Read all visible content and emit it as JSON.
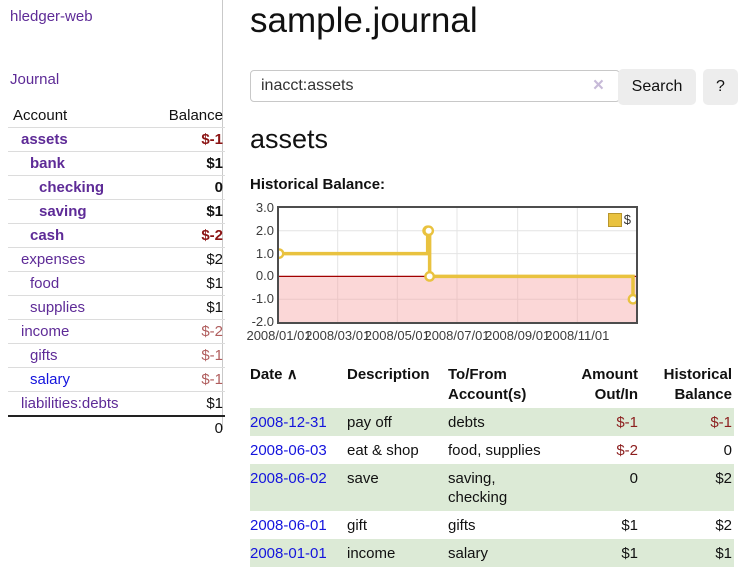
{
  "colors": {
    "link_purple": "#5e2b97",
    "link_blue": "#1414dd",
    "negative_strong": "#8b1414",
    "negative_soft": "#b05d5d",
    "negative_table": "#8c1e1e",
    "row_stripe_green": "#dcead6",
    "chart_line_gold": "#e9c23f",
    "chart_zero_line": "#a20000",
    "chart_negative_fill": "#fcd7d7",
    "chart_border": "#4d4d4d"
  },
  "sidebar": {
    "brand": "hledger-web",
    "journal_link": "Journal",
    "table": {
      "account_header": "Account",
      "balance_header": "Balance",
      "accounts": [
        {
          "name": "assets",
          "depth": 1,
          "bold": true,
          "link": "purple",
          "balance": "$-1",
          "bal_class": "neg-strong"
        },
        {
          "name": "bank",
          "depth": 2,
          "bold": true,
          "link": "purple",
          "balance": "$1",
          "bal_class": ""
        },
        {
          "name": "checking",
          "depth": 3,
          "bold": true,
          "link": "purple",
          "balance": "0",
          "bal_class": ""
        },
        {
          "name": "saving",
          "depth": 3,
          "bold": true,
          "link": "purple",
          "balance": "$1",
          "bal_class": ""
        },
        {
          "name": "cash",
          "depth": 2,
          "bold": true,
          "link": "purple",
          "balance": "$-2",
          "bal_class": "neg-strong"
        },
        {
          "name": "expenses",
          "depth": 1,
          "bold": false,
          "link": "purple",
          "balance": "$2",
          "bal_class": ""
        },
        {
          "name": "food",
          "depth": 2,
          "bold": false,
          "link": "purple",
          "balance": "$1",
          "bal_class": ""
        },
        {
          "name": "supplies",
          "depth": 2,
          "bold": false,
          "link": "purple",
          "balance": "$1",
          "bal_class": ""
        },
        {
          "name": "income",
          "depth": 1,
          "bold": false,
          "link": "purple",
          "balance": "$-2",
          "bal_class": "neg-soft"
        },
        {
          "name": "gifts",
          "depth": 2,
          "bold": false,
          "link": "purple",
          "balance": "$-1",
          "bal_class": "neg-soft"
        },
        {
          "name": "salary",
          "depth": 2,
          "bold": false,
          "link": "blue",
          "balance": "$-1",
          "bal_class": "neg-soft"
        },
        {
          "name": "liabilities:debts",
          "depth": 1,
          "bold": false,
          "link": "purple",
          "balance": "$1",
          "bal_class": ""
        }
      ],
      "total": "0"
    }
  },
  "main": {
    "title": "sample.journal",
    "search": {
      "value": "inacct:assets",
      "clear_icon": "×",
      "search_button": "Search",
      "help_button": "?"
    },
    "account_heading": "assets",
    "chart_label": "Historical Balance:"
  },
  "chart_data": {
    "type": "line",
    "style": "step",
    "title": "Historical Balance",
    "legend": [
      {
        "label": "$",
        "color": "#e9c23f"
      }
    ],
    "legend_position": "top-right",
    "grid": true,
    "ylim": [
      -2,
      3
    ],
    "y_tick_labels": [
      "3.0",
      "2.0",
      "1.0",
      "0.0",
      "-1.0",
      "-2.0"
    ],
    "x_range": [
      "2008/01/01",
      "2008/12/31"
    ],
    "x_tick_labels": [
      "2008/01/01",
      "2008/03/01",
      "2008/05/01",
      "2008/07/01",
      "2008/09/01",
      "2008/11/01"
    ],
    "series": [
      {
        "name": "$",
        "points": [
          [
            "2008-01-01",
            1
          ],
          [
            "2008-06-01",
            2
          ],
          [
            "2008-06-02",
            2
          ],
          [
            "2008-06-03",
            0
          ],
          [
            "2008-12-31",
            -1
          ]
        ]
      }
    ],
    "negative_region_shaded": true
  },
  "transactions": {
    "headers": {
      "date": "Date",
      "description": "Description",
      "accounts": "To/From Account(s)",
      "amount": "Amount Out/In",
      "balance": "Historical Balance"
    },
    "sort_icon": "∧",
    "rows": [
      {
        "date": "2008-12-31",
        "description": "pay off",
        "accounts": "debts",
        "amount": "$-1",
        "amount_neg": true,
        "balance": "$-1",
        "balance_neg": true,
        "shaded": true
      },
      {
        "date": "2008-06-03",
        "description": "eat & shop",
        "accounts": "food, supplies",
        "amount": "$-2",
        "amount_neg": true,
        "balance": "0",
        "balance_neg": false,
        "shaded": false
      },
      {
        "date": "2008-06-02",
        "description": "save",
        "accounts": "saving, checking",
        "amount": "0",
        "amount_neg": false,
        "balance": "$2",
        "balance_neg": false,
        "shaded": true
      },
      {
        "date": "2008-06-01",
        "description": "gift",
        "accounts": "gifts",
        "amount": "$1",
        "amount_neg": false,
        "balance": "$2",
        "balance_neg": false,
        "shaded": false
      },
      {
        "date": "2008-01-01",
        "description": "income",
        "accounts": "salary",
        "amount": "$1",
        "amount_neg": false,
        "balance": "$1",
        "balance_neg": false,
        "shaded": true
      }
    ]
  }
}
